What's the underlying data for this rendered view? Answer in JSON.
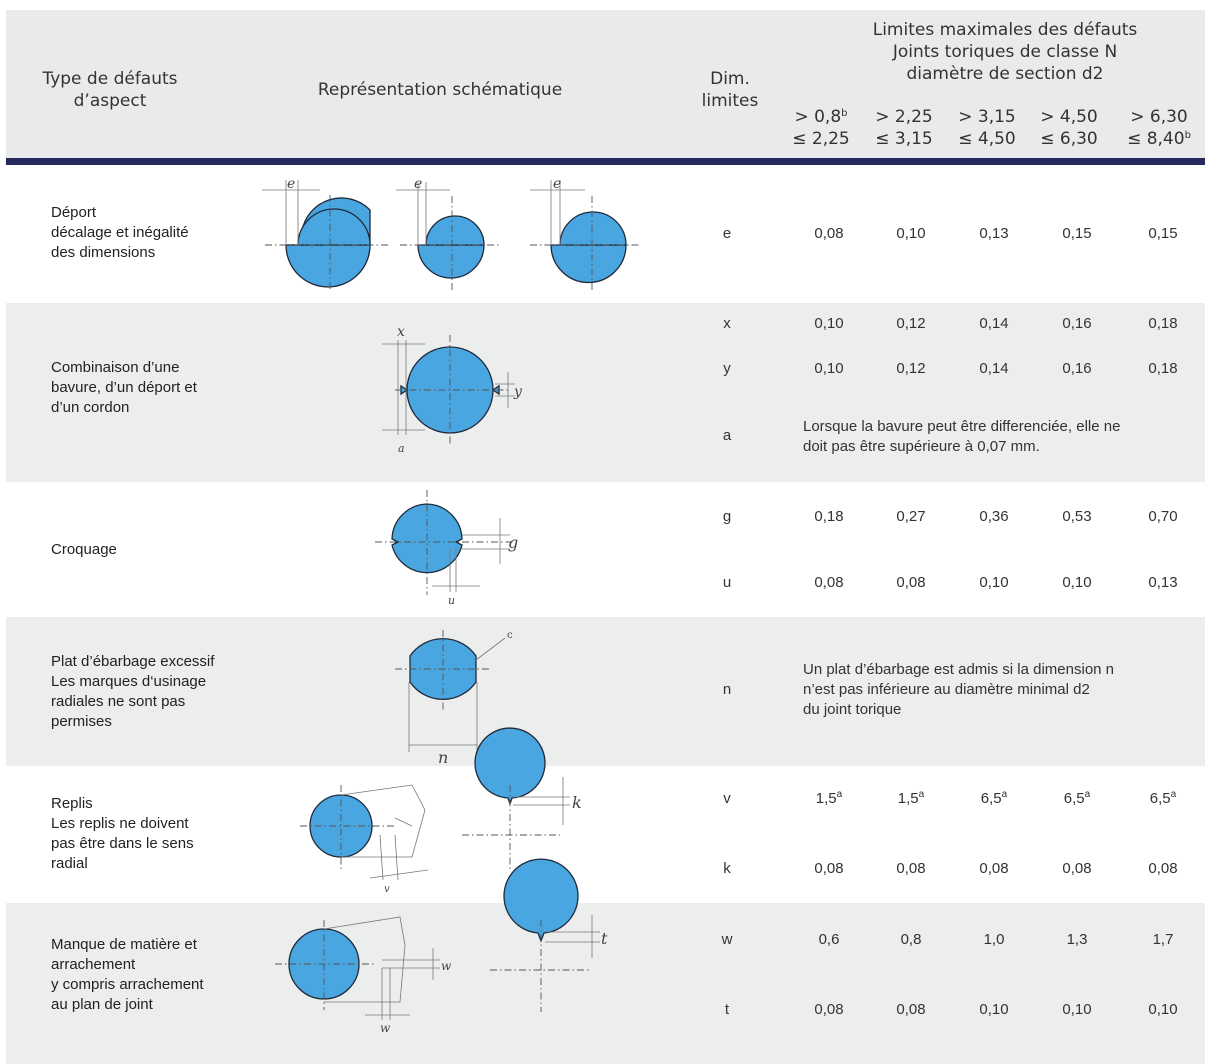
{
  "header": {
    "col_type": [
      "Type de défauts",
      "d’aspect"
    ],
    "col_schema": "Représentation schématique",
    "col_dim": [
      "Dim.",
      "limites"
    ],
    "limits_title": [
      "Limites maximales des défauts",
      "Joints toriques de classe N",
      "diamètre de section d2"
    ],
    "ranges": [
      {
        "low": "> 0,8",
        "low_sup": "b",
        "high": "≤ 2,25",
        "high_sup": ""
      },
      {
        "low": "> 2,25",
        "low_sup": "",
        "high": "≤ 3,15",
        "high_sup": ""
      },
      {
        "low": "> 3,15",
        "low_sup": "",
        "high": "≤ 4,50",
        "high_sup": ""
      },
      {
        "low": "> 4,50",
        "low_sup": "",
        "high": "≤ 6,30",
        "high_sup": ""
      },
      {
        "low": "> 6,30",
        "low_sup": "",
        "high": "≤ 8,40",
        "high_sup": "b"
      }
    ]
  },
  "rows": [
    {
      "defect": "Déport\ndécalage et inégalité\ndes dimensions",
      "dims": [
        {
          "code": "e",
          "values": [
            "0,08",
            "0,10",
            "0,13",
            "0,15",
            "0,15"
          ]
        }
      ]
    },
    {
      "defect": "Combinaison d’une\nbavure, d’un déport et\nd’un cordon",
      "dims": [
        {
          "code": "x",
          "values": [
            "0,10",
            "0,12",
            "0,14",
            "0,16",
            "0,18"
          ]
        },
        {
          "code": "y",
          "values": [
            "0,10",
            "0,12",
            "0,14",
            "0,16",
            "0,18"
          ]
        },
        {
          "code": "a",
          "note": [
            "Lorsque la bavure peut être differenciée, elle ne",
            "doit pas être supérieure à 0,07 mm."
          ]
        }
      ]
    },
    {
      "defect": "Croquage",
      "dims": [
        {
          "code": "g",
          "values": [
            "0,18",
            "0,27",
            "0,36",
            "0,53",
            "0,70"
          ]
        },
        {
          "code": "u",
          "values": [
            "0,08",
            "0,08",
            "0,10",
            "0,10",
            "0,13"
          ]
        }
      ]
    },
    {
      "defect": "Plat d’ébarbage excessif\nLes marques d‘usinage\nradiales ne sont pas\npermises",
      "dims": [
        {
          "code": "n",
          "note": [
            "Un plat d’ébarbage est admis si la dimension n",
            "n’est pas inférieure au diamètre minimal d2",
            "du joint torique"
          ]
        }
      ]
    },
    {
      "defect": "Replis\nLes replis ne doivent\npas être dans le sens\nradial",
      "dims": [
        {
          "code": "v",
          "values": [
            "1,5",
            "1,5",
            "6,5",
            "6,5",
            "6,5"
          ],
          "value_sup": "a"
        },
        {
          "code": "k",
          "values": [
            "0,08",
            "0,08",
            "0,08",
            "0,08",
            "0,08"
          ]
        }
      ]
    },
    {
      "defect": "Manque de matière et\narrachement\ny compris arrachement\nau plan de joint",
      "dims": [
        {
          "code": "w",
          "values": [
            "0,6",
            "0,8",
            "1,0",
            "1,3",
            "1,7"
          ]
        },
        {
          "code": "t",
          "values": [
            "0,08",
            "0,08",
            "0,10",
            "0,10",
            "0,10"
          ]
        }
      ]
    }
  ],
  "diagram_labels": {
    "e": "e",
    "x": "x",
    "y": "y",
    "a": "a",
    "g": "g",
    "u": "u",
    "n": "n",
    "c": "c",
    "k": "k",
    "v": "v",
    "w": "w",
    "t": "t"
  },
  "colors": {
    "header_bg": "#e9eaeb",
    "header_rule": "#262a5e",
    "band_bg": "#eceded",
    "shape_fill": "#4aa6e0"
  }
}
